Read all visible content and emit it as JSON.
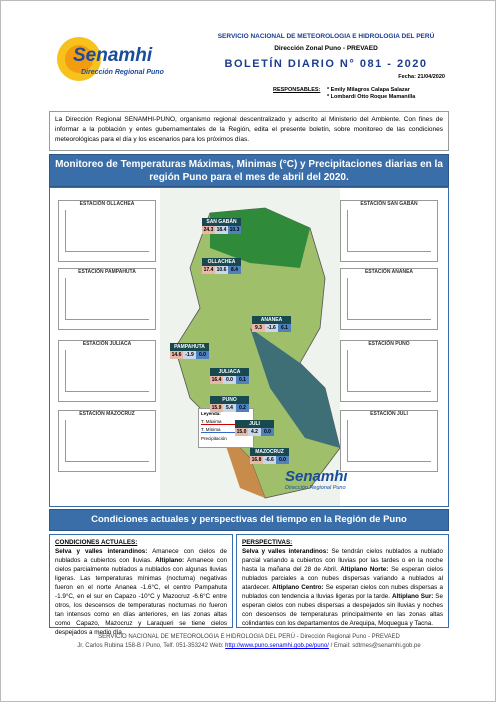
{
  "header": {
    "org": "SERVICIO NACIONAL DE METEOROLOGIA E HIDROLOGIA DEL PERÚ",
    "office": "Dirección Zonal Puno - PREVAED",
    "title": "BOLETÍN DIARIO N° 081 - 2020",
    "date": "Fecha: 21/04/2020",
    "responsables_label": "RESPONSABLES:",
    "responsables": [
      "* Emily Milagros Calapa Salazar",
      "* Lombardi Otto Roque Mamanilla"
    ],
    "logo_name": "Senamhi",
    "logo_sub": "Dirección Regional Puno"
  },
  "intro": "La Dirección Regional SENAMHI-PUNO, organismo regional descentralizado y adscrito al Ministerio del Ambiente. Con fines de informar a la población y entes gubernamentales de la Región, edita el presente boletín, sobre monitoreo de las condiciones meteorológicas para el día y los escenarios para los próximos días.",
  "section1": "Monitoreo de Temperaturas Máximas, Minimas (°C) y Precipitaciones diarias en la región Puno para el mes de abril del 2020.",
  "map": {
    "charts": [
      "ESTACIÓN OLLACHEA",
      "ESTACIÓN PAMPAHUTA",
      "ESTACIÓN JULIACA",
      "ESTACIÓN MAZOCRUZ",
      "ESTACIÓN SAN GABÁN",
      "ESTACIÓN ANANEA",
      "ESTACIÓN PUNO",
      "ESTACIÓN JULI"
    ],
    "stations": [
      {
        "name": "SAN GABÁN",
        "values": [
          "24.3",
          "18.4",
          "10.3"
        ]
      },
      {
        "name": "OLLACHEA",
        "values": [
          "17.4",
          "10.6",
          "8.4"
        ]
      },
      {
        "name": "ANANEA",
        "values": [
          "9.3",
          "-1.6",
          "6.1"
        ]
      },
      {
        "name": "PAMPAHUTA",
        "values": [
          "14.6",
          "-1.9",
          "0.0"
        ]
      },
      {
        "name": "JULIACA",
        "values": [
          "16.4",
          "0.0",
          "0.1"
        ]
      },
      {
        "name": "PUNO",
        "values": [
          "15.9",
          "5.4",
          "0.2"
        ]
      },
      {
        "name": "JULI",
        "values": [
          "15.0",
          "4.2",
          "0.0"
        ]
      },
      {
        "name": "MAZOCRUZ",
        "values": [
          "16.8",
          "-6.6",
          "0.0"
        ]
      }
    ],
    "legend": {
      "title": "Leyenda:",
      "items": [
        "T. Máxima",
        "T. Mínima",
        "Precipitación"
      ]
    },
    "logo_name": "Senamhi",
    "logo_sub": "Dirección Regional Puno"
  },
  "section2": "Condiciones actuales y perspectivas del tiempo en la Región de Puno",
  "left": {
    "heading": "CONDICIONES ACTUALES:",
    "parts": [
      "Selva y valles interandinos:",
      " Amanece con cielos de nublados a cubiertos con lluvias. ",
      "Altiplano:",
      " Amanece con cielos parcialmente nublados a nublados con algunas lluvias ligeras. Las temperaturas mínimas (nocturna) negativas fueron en el norte Ananea -1.6°C, el centro Pampahuta -1.9°C, en el sur en Capazo -10°C y Mazocruz -6.6°C entre otros, los descensos de temperaturas nocturnas no fueron tan intensos como en días anteriores, en las zonas altas como Capazo, Mazocruz y Laraqueri se tiene cielos despejados a medio día."
    ]
  },
  "right": {
    "heading": "PERSPECTIVAS:",
    "parts": [
      "Selva y valles interandinos:",
      " Se tendrán cielos nublados a nublado parcial variando a cubiertos con lluvias por las tardes o en la noche hasta la mañana del 28 de Abril. ",
      "Altiplano Norte:",
      " Se esperan cielos nublados parciales a con nubes dispersas variando a nublados al atardecer. ",
      "Altiplano Centro:",
      " Se esperan cielos con nubes dispersas a nublados con tendencia a lluvias ligeras por la tarde. ",
      "Altiplano Sur:",
      " Se esperan cielos con nubes dispersas a despejados sin lluvias y noches con descensos de temperaturas principalmente en las zonas altas colindantes con los departamentos de Arequipa, Moquegua y Tacna."
    ]
  },
  "footer": {
    "line1": "SERVICIO NACIONAL DE METEOROLOGIA E HIDROLOGIA DEL PERÚ - Dirección Regional Puno - PREVAED",
    "line2a": "Jr. Carlos Rubina 158-B / Puno, Telf. 051-353242 Web: ",
    "link": "http://www.puno.senamhi.gob.pe/puno/",
    "line2b": " / Email: sdtrnes@senamhi.gob.pe"
  }
}
